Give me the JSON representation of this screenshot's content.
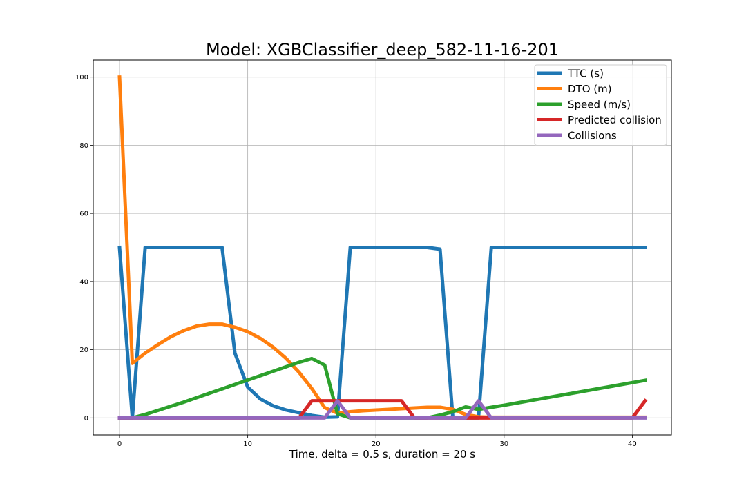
{
  "chart_data": {
    "type": "line",
    "title": "Model: XGBClassifier_deep_582-11-16-201",
    "xlabel": "Time, delta = 0.5 s, duration = 20 s",
    "ylabel": "",
    "xlim": [
      -2.05,
      43.05
    ],
    "ylim": [
      -5,
      105
    ],
    "xticks": [
      0,
      10,
      20,
      30,
      40
    ],
    "yticks": [
      0,
      20,
      40,
      60,
      80,
      100
    ],
    "grid": true,
    "legend_position": "top-right",
    "series": [
      {
        "name": "TTC (s)",
        "color": "#1f77b4",
        "x": [
          0,
          1,
          2,
          3,
          4,
          5,
          6,
          7,
          8,
          9,
          10,
          11,
          12,
          13,
          14,
          15,
          16,
          17,
          18,
          19,
          20,
          21,
          22,
          23,
          24,
          25,
          26,
          27,
          28,
          29,
          30,
          41
        ],
        "y": [
          50,
          0,
          50,
          50,
          50,
          50,
          50,
          50,
          50,
          19,
          9,
          5.5,
          3.5,
          2.3,
          1.5,
          0.7,
          0.2,
          0.3,
          50,
          50,
          50,
          50,
          50,
          50,
          50,
          49.5,
          0,
          0,
          0,
          50,
          50,
          50
        ]
      },
      {
        "name": "DTO (m)",
        "color": "#ff7f0e",
        "x": [
          0,
          1,
          2,
          3,
          4,
          5,
          6,
          7,
          8,
          9,
          10,
          11,
          12,
          13,
          14,
          15,
          16,
          17,
          18,
          19,
          20,
          21,
          22,
          23,
          24,
          25,
          26,
          27,
          28,
          29,
          41
        ],
        "y": [
          100,
          16,
          19,
          21.5,
          23.8,
          25.6,
          26.9,
          27.5,
          27.5,
          26.6,
          25.3,
          23.3,
          20.7,
          17.4,
          13.4,
          8.6,
          3,
          1.4,
          1.8,
          2.1,
          2.3,
          2.5,
          2.7,
          2.9,
          3.1,
          3.1,
          2.5,
          1,
          0.3,
          0.2,
          0.2
        ]
      },
      {
        "name": "Speed (m/s)",
        "color": "#2ca02c",
        "x": [
          0,
          1,
          2,
          3,
          4,
          5,
          6,
          7,
          8,
          9,
          10,
          11,
          12,
          13,
          14,
          15,
          16,
          17,
          18,
          19,
          20,
          21,
          22,
          23,
          24,
          25,
          26,
          27,
          28,
          29,
          30,
          41
        ],
        "y": [
          0,
          0,
          1,
          2.2,
          3.4,
          4.6,
          5.9,
          7.2,
          8.5,
          9.8,
          11.1,
          12.4,
          13.7,
          15,
          16.3,
          17.4,
          15.5,
          1.2,
          0,
          0,
          0,
          0,
          0,
          0,
          0,
          0.8,
          1.8,
          3.2,
          2.5,
          3.1,
          3.7,
          11
        ]
      },
      {
        "name": "Predicted collision",
        "color": "#d62728",
        "x": [
          0,
          14,
          15,
          16,
          17,
          18,
          19,
          20,
          21,
          22,
          23,
          24,
          25,
          26,
          27,
          28,
          29,
          30,
          40,
          41
        ],
        "y": [
          0,
          0,
          5,
          5,
          5,
          5,
          5,
          5,
          5,
          5,
          0,
          0,
          0,
          0,
          0,
          0,
          0,
          0,
          0,
          5
        ]
      },
      {
        "name": "Collisions",
        "color": "#9467bd",
        "x": [
          0,
          16,
          17,
          18,
          27,
          28,
          29,
          41
        ],
        "y": [
          0,
          0,
          5,
          0,
          0,
          5,
          0,
          0
        ]
      }
    ]
  }
}
